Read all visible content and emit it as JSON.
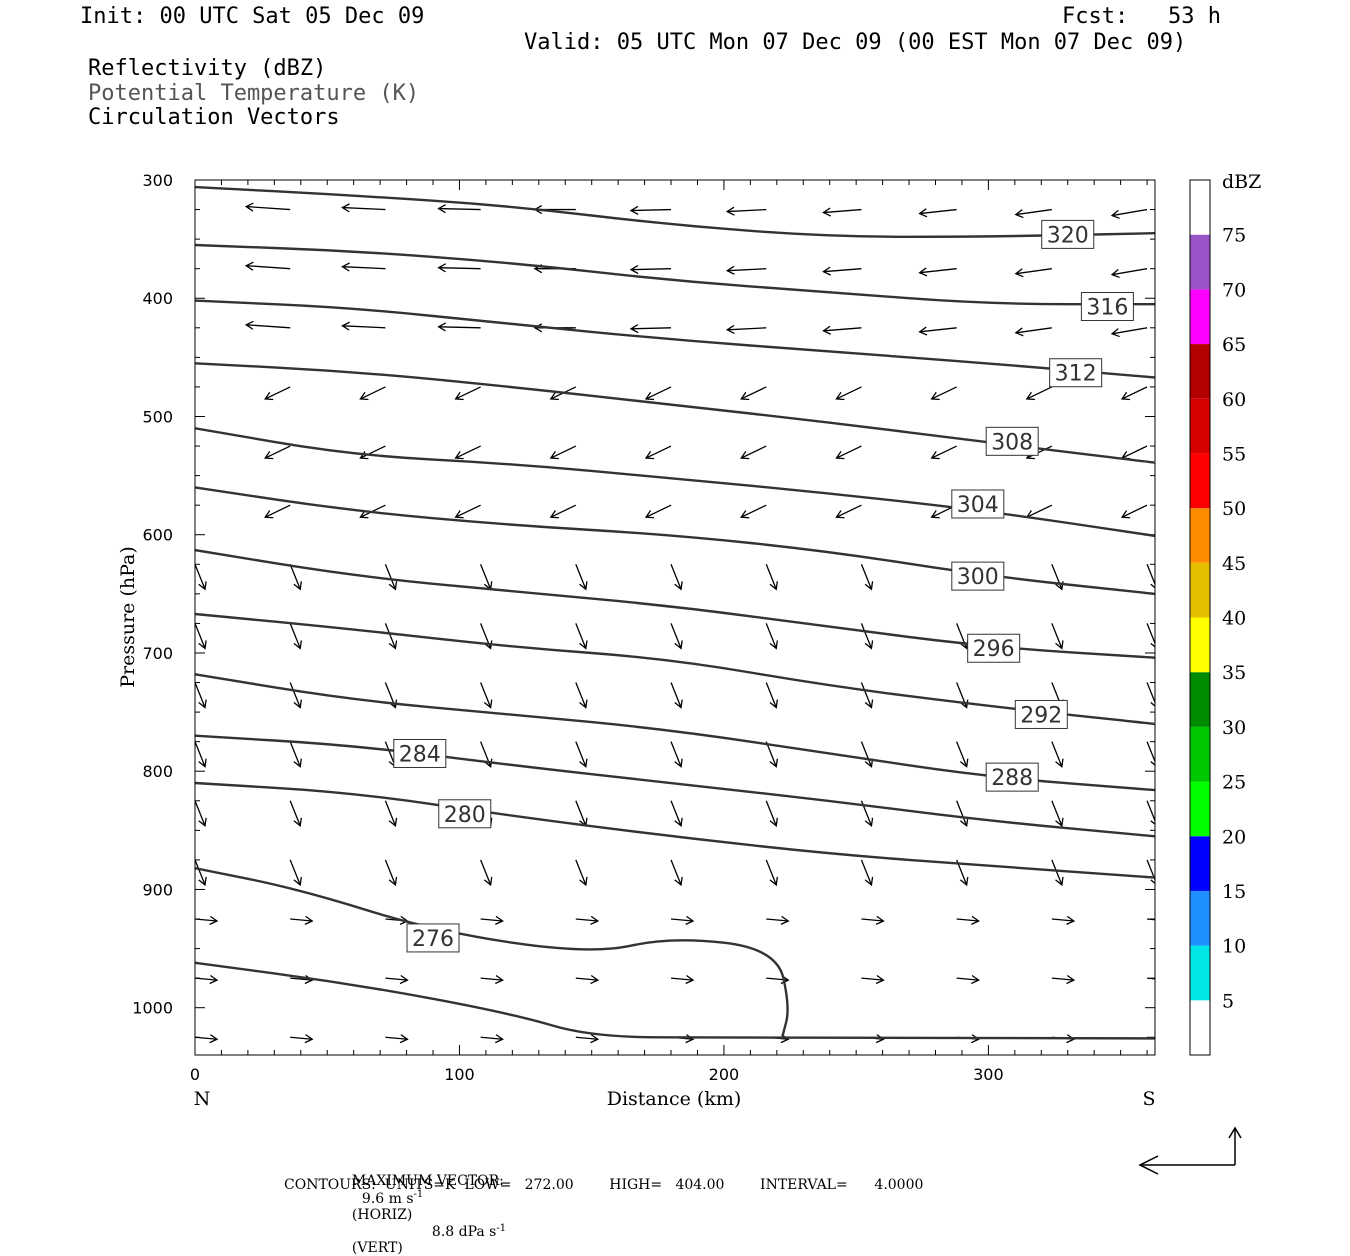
{
  "header": {
    "init": "Init: 00 UTC Sat 05 Dec 09",
    "fcst": "Fcst:   53 h",
    "valid": "Valid: 05 UTC Mon 07 Dec 09 (00 EST Mon 07 Dec 09)",
    "field1": "Reflectivity (dBZ)",
    "field2": "Potential Temperature (K)",
    "field3": "Circulation Vectors"
  },
  "chart_data": {
    "type": "line",
    "title": "",
    "xlabel": "Distance (km)",
    "ylabel": "Pressure (hPa)",
    "xlim": [
      0,
      363
    ],
    "ylim": [
      1040,
      300
    ],
    "x_ticks": [
      0,
      100,
      200,
      300
    ],
    "y_ticks": [
      300,
      400,
      500,
      600,
      700,
      800,
      900,
      1000
    ],
    "x_end_labels": {
      "left": "N",
      "right": "S"
    },
    "series": [
      {
        "name": "320",
        "points": [
          [
            0,
            306
          ],
          [
            60,
            313
          ],
          [
            120,
            322
          ],
          [
            180,
            338
          ],
          [
            240,
            348
          ],
          [
            300,
            348
          ],
          [
            363,
            345
          ]
        ],
        "label_at": [
          330,
          346
        ]
      },
      {
        "name": "316",
        "points": [
          [
            0,
            355
          ],
          [
            60,
            360
          ],
          [
            120,
            370
          ],
          [
            180,
            385
          ],
          [
            240,
            395
          ],
          [
            300,
            405
          ],
          [
            363,
            405
          ]
        ],
        "label_at": [
          345,
          407
        ]
      },
      {
        "name": "312",
        "points": [
          [
            0,
            402
          ],
          [
            60,
            408
          ],
          [
            120,
            422
          ],
          [
            180,
            435
          ],
          [
            240,
            445
          ],
          [
            300,
            455
          ],
          [
            363,
            467
          ]
        ],
        "label_at": [
          333,
          463
        ]
      },
      {
        "name": "308",
        "points": [
          [
            0,
            455
          ],
          [
            60,
            462
          ],
          [
            120,
            475
          ],
          [
            180,
            490
          ],
          [
            240,
            505
          ],
          [
            300,
            522
          ],
          [
            363,
            539
          ]
        ],
        "label_at": [
          309,
          521
        ]
      },
      {
        "name": "304",
        "points": [
          [
            0,
            510
          ],
          [
            60,
            533
          ],
          [
            120,
            540
          ],
          [
            180,
            552
          ],
          [
            240,
            565
          ],
          [
            300,
            580
          ],
          [
            363,
            601
          ]
        ],
        "label_at": [
          296,
          574
        ]
      },
      {
        "name": "300",
        "points": [
          [
            0,
            560
          ],
          [
            60,
            580
          ],
          [
            120,
            592
          ],
          [
            180,
            600
          ],
          [
            240,
            614
          ],
          [
            300,
            635
          ],
          [
            363,
            650
          ]
        ],
        "label_at": [
          296,
          635
        ]
      },
      {
        "name": "296",
        "points": [
          [
            0,
            613
          ],
          [
            60,
            635
          ],
          [
            120,
            648
          ],
          [
            180,
            660
          ],
          [
            240,
            678
          ],
          [
            300,
            695
          ],
          [
            363,
            704
          ]
        ],
        "label_at": [
          302,
          696
        ]
      },
      {
        "name": "292",
        "points": [
          [
            0,
            667
          ],
          [
            60,
            680
          ],
          [
            120,
            695
          ],
          [
            180,
            705
          ],
          [
            240,
            728
          ],
          [
            300,
            745
          ],
          [
            363,
            760
          ]
        ],
        "label_at": [
          320,
          752
        ]
      },
      {
        "name": "288",
        "points": [
          [
            0,
            718
          ],
          [
            60,
            740
          ],
          [
            120,
            752
          ],
          [
            180,
            765
          ],
          [
            240,
            785
          ],
          [
            300,
            805
          ],
          [
            363,
            816
          ]
        ],
        "label_at": [
          309,
          805
        ]
      },
      {
        "name": "284",
        "points": [
          [
            0,
            770
          ],
          [
            60,
            778
          ],
          [
            120,
            795
          ],
          [
            180,
            810
          ],
          [
            240,
            825
          ],
          [
            300,
            842
          ],
          [
            363,
            855
          ]
        ],
        "label_at": [
          85,
          785
        ]
      },
      {
        "name": "280",
        "points": [
          [
            0,
            810
          ],
          [
            60,
            818
          ],
          [
            120,
            838
          ],
          [
            180,
            855
          ],
          [
            240,
            870
          ],
          [
            300,
            880
          ],
          [
            363,
            890
          ]
        ],
        "label_at": [
          102,
          836
        ]
      },
      {
        "name": "276",
        "points": [
          [
            0,
            882
          ],
          [
            40,
            900
          ],
          [
            90,
            935
          ],
          [
            150,
            955
          ],
          [
            180,
            940
          ],
          [
            220,
            950
          ],
          [
            225,
            1000
          ],
          [
            222,
            1025
          ]
        ],
        "label_at": [
          90,
          941
        ]
      },
      {
        "name": "",
        "points": [
          [
            0,
            962
          ],
          [
            60,
            980
          ],
          [
            120,
            1005
          ],
          [
            150,
            1025
          ],
          [
            200,
            1025
          ],
          [
            363,
            1026
          ]
        ]
      }
    ],
    "colorbar": {
      "title": "dBZ",
      "labels": [
        "5",
        "10",
        "15",
        "20",
        "25",
        "30",
        "35",
        "40",
        "45",
        "50",
        "55",
        "60",
        "65",
        "70",
        "75"
      ],
      "colors": [
        "#ffffff",
        "#00e5e5",
        "#1e90ff",
        "#0000ff",
        "#00ff00",
        "#00c800",
        "#008c00",
        "#ffff00",
        "#e6be00",
        "#ff8c00",
        "#ff0000",
        "#d70000",
        "#b40000",
        "#ff00ff",
        "#9955c8",
        "#ffffff"
      ]
    }
  },
  "footer": {
    "max_vector_label": "MAXIMUM VECTOR:",
    "horiz_value": "9.6 m s",
    "horiz_exp": "-1",
    "horiz_label": "(HORIZ)",
    "vert_value": "8.8 dPa s",
    "vert_exp": "-1",
    "vert_label": "(VERT)",
    "contours": "CONTOURS:  UNITS=K  LOW=   272.00        HIGH=   404.00        INTERVAL=      4.0000"
  }
}
